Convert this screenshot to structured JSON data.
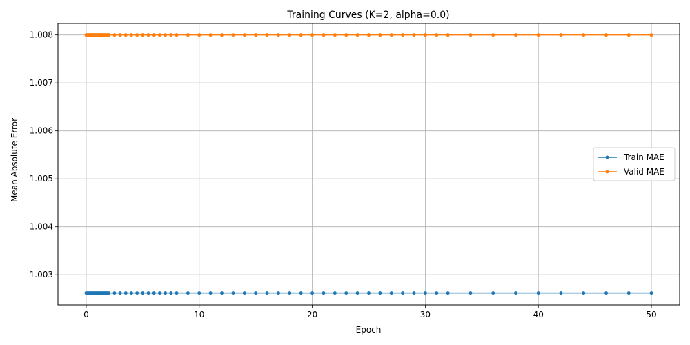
{
  "chart_data": {
    "type": "line",
    "title": "Training Curves (K=2, alpha=0.0)",
    "xlabel": "Epoch",
    "ylabel": "Mean Absolute Error",
    "xlim": [
      -2.5,
      52.5
    ],
    "ylim": [
      1.00237,
      1.00824
    ],
    "xticks": [
      0,
      10,
      20,
      30,
      40,
      50
    ],
    "xtick_labels": [
      "0",
      "10",
      "20",
      "30",
      "40",
      "50"
    ],
    "yticks": [
      1.003,
      1.004,
      1.005,
      1.006,
      1.007,
      1.008
    ],
    "ytick_labels": [
      "1.003",
      "1.004",
      "1.005",
      "1.006",
      "1.007",
      "1.008"
    ],
    "grid": true,
    "legend_position": "center-right",
    "x": [
      0,
      0.1,
      0.2,
      0.3,
      0.4,
      0.5,
      0.6,
      0.7,
      0.8,
      0.9,
      1.0,
      1.1,
      1.2,
      1.3,
      1.4,
      1.5,
      1.6,
      1.7,
      1.8,
      1.9,
      2.0,
      2.5,
      3.0,
      3.5,
      4.0,
      4.5,
      5.0,
      5.5,
      6.0,
      6.5,
      7.0,
      7.5,
      8.0,
      9,
      10,
      11,
      12,
      13,
      14,
      15,
      16,
      17,
      18,
      19,
      20,
      21,
      22,
      23,
      24,
      25,
      26,
      27,
      28,
      29,
      30,
      31,
      32,
      34,
      36,
      38,
      40,
      42,
      44,
      46,
      48,
      50
    ],
    "series": [
      {
        "name": "Train MAE",
        "color": "#1f77b4",
        "value": 1.00262
      },
      {
        "name": "Valid MAE",
        "color": "#ff7f0e",
        "value": 1.008
      }
    ]
  }
}
